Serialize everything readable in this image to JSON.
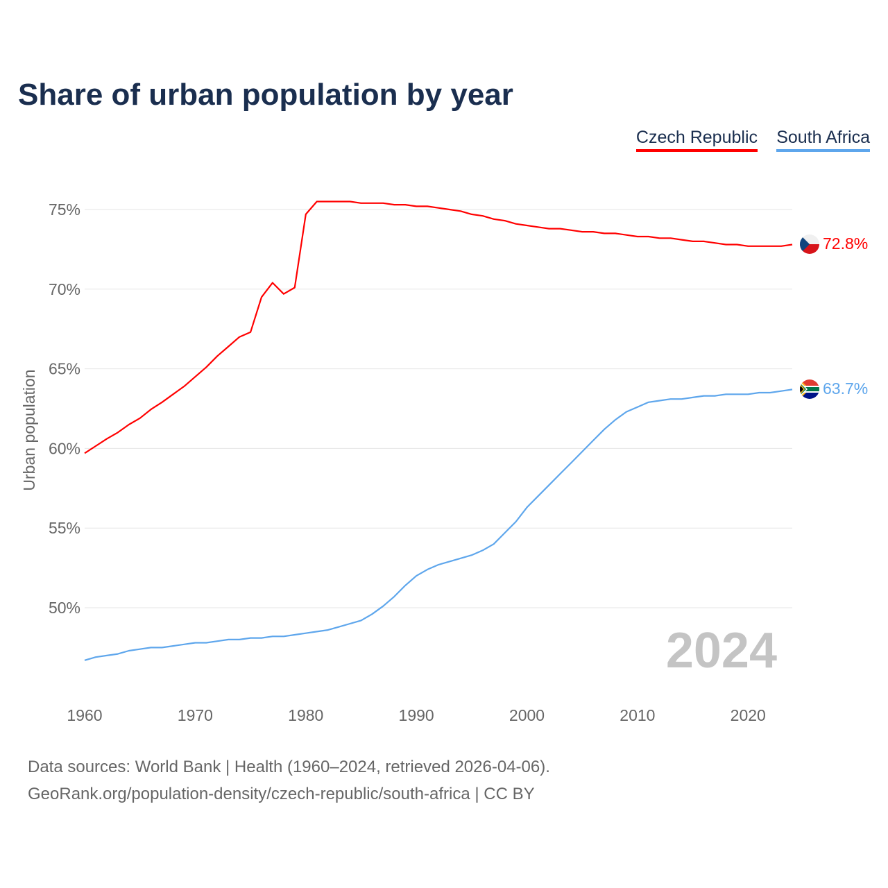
{
  "title": "Share of urban population by year",
  "legend": [
    {
      "name": "Czech Republic",
      "color": "#ff0000"
    },
    {
      "name": "South Africa",
      "color": "#5ea6ec"
    }
  ],
  "year_watermark": "2024",
  "footer": {
    "line1": "Data sources: World Bank | Health (1960–2024, retrieved 2026-04-06).",
    "line2": "GeoRank.org/population-density/czech-republic/south-africa | CC BY"
  },
  "chart_data": {
    "type": "line",
    "title": "Share of urban population by year",
    "xlabel": "",
    "ylabel": "Urban population",
    "xlim": [
      1960,
      2024
    ],
    "ylim": [
      45.5,
      76.5
    ],
    "x_ticks": [
      1960,
      1970,
      1980,
      1990,
      2000,
      2010,
      2020
    ],
    "x_tick_labels": [
      "1960",
      "1970",
      "1980",
      "1990",
      "2000",
      "2010",
      "2020"
    ],
    "y_ticks": [
      50,
      55,
      60,
      65,
      70,
      75
    ],
    "y_tick_labels": [
      "50%",
      "55%",
      "60%",
      "65%",
      "70%",
      "75%"
    ],
    "grid": true,
    "legend_position": "top-right",
    "x": [
      1960,
      1961,
      1962,
      1963,
      1964,
      1965,
      1966,
      1967,
      1968,
      1969,
      1970,
      1971,
      1972,
      1973,
      1974,
      1975,
      1976,
      1977,
      1978,
      1979,
      1980,
      1981,
      1982,
      1983,
      1984,
      1985,
      1986,
      1987,
      1988,
      1989,
      1990,
      1991,
      1992,
      1993,
      1994,
      1995,
      1996,
      1997,
      1998,
      1999,
      2000,
      2001,
      2002,
      2003,
      2004,
      2005,
      2006,
      2007,
      2008,
      2009,
      2010,
      2011,
      2012,
      2013,
      2014,
      2015,
      2016,
      2017,
      2018,
      2019,
      2020,
      2021,
      2022,
      2023,
      2024
    ],
    "series": [
      {
        "name": "Czech Republic",
        "color": "#ff0000",
        "end_label": "72.8%",
        "values": [
          59.7,
          60.15,
          60.6,
          61.0,
          61.5,
          61.9,
          62.45,
          62.9,
          63.4,
          63.9,
          64.5,
          65.1,
          65.8,
          66.4,
          67.0,
          67.3,
          69.5,
          70.4,
          69.7,
          70.1,
          74.7,
          75.5,
          75.5,
          75.5,
          75.5,
          75.4,
          75.4,
          75.4,
          75.3,
          75.3,
          75.2,
          75.2,
          75.1,
          75.0,
          74.9,
          74.7,
          74.6,
          74.4,
          74.3,
          74.1,
          74.0,
          73.9,
          73.8,
          73.8,
          73.7,
          73.6,
          73.6,
          73.5,
          73.5,
          73.4,
          73.3,
          73.3,
          73.2,
          73.2,
          73.1,
          73.0,
          73.0,
          72.9,
          72.8,
          72.8,
          72.7,
          72.7,
          72.7,
          72.7,
          72.8
        ]
      },
      {
        "name": "South Africa",
        "color": "#5ea6ec",
        "end_label": "63.7%",
        "values": [
          46.7,
          46.9,
          47.0,
          47.1,
          47.3,
          47.4,
          47.5,
          47.5,
          47.6,
          47.7,
          47.8,
          47.8,
          47.9,
          48.0,
          48.0,
          48.1,
          48.1,
          48.2,
          48.2,
          48.3,
          48.4,
          48.5,
          48.6,
          48.8,
          49.0,
          49.2,
          49.6,
          50.1,
          50.7,
          51.4,
          52.0,
          52.4,
          52.7,
          52.9,
          53.1,
          53.3,
          53.6,
          54.0,
          54.7,
          55.4,
          56.3,
          57.0,
          57.7,
          58.4,
          59.1,
          59.8,
          60.5,
          61.2,
          61.8,
          62.3,
          62.6,
          62.9,
          63.0,
          63.1,
          63.1,
          63.2,
          63.3,
          63.3,
          63.4,
          63.4,
          63.4,
          63.5,
          63.5,
          63.6,
          63.7
        ]
      }
    ]
  }
}
